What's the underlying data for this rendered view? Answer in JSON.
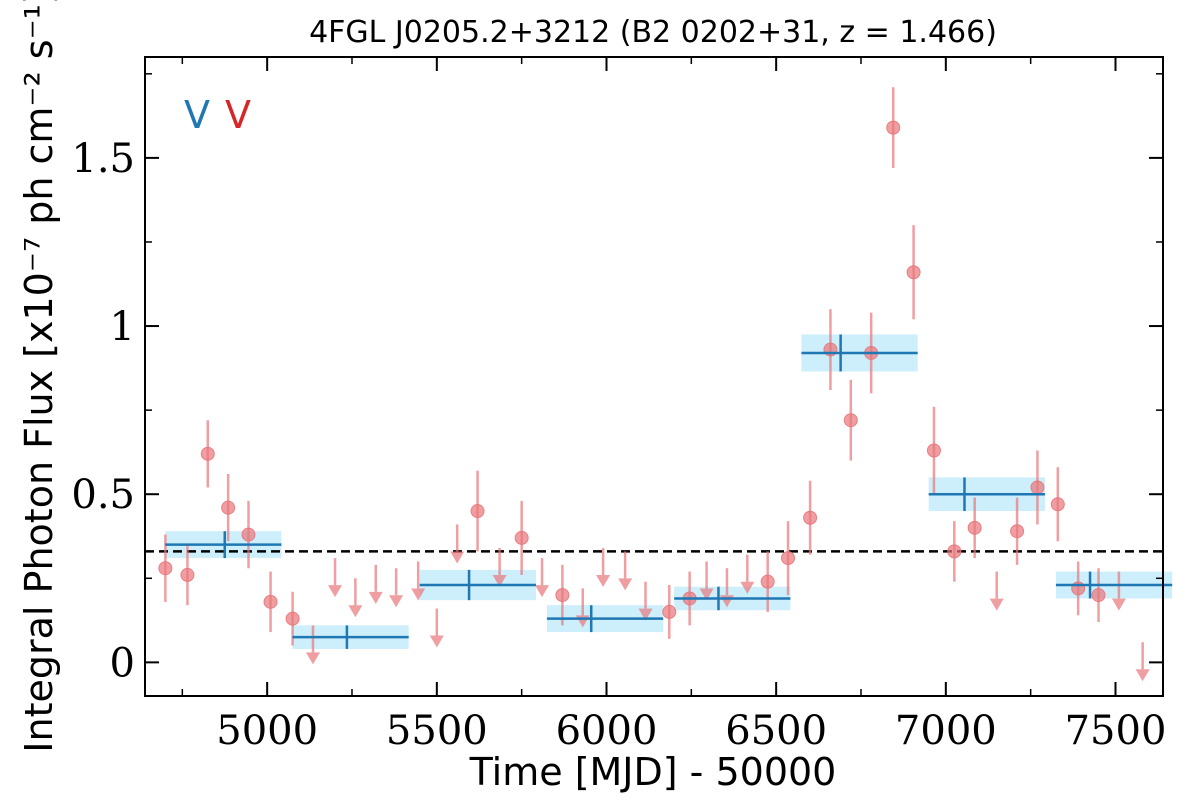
{
  "chart_data": {
    "type": "scatter",
    "title": "4FGL J0205.2+3212 (B2 0202+31, z = 1.466)",
    "xlabel": "Time [MJD] - 50000",
    "ylabel": "Integral Photon Flux [x10⁻⁷ ph cm⁻² s⁻¹]",
    "xlim": [
      4640,
      7640
    ],
    "ylim": [
      -0.1,
      1.8
    ],
    "xticks": [
      5000,
      5500,
      6000,
      6500,
      7000,
      7500
    ],
    "xtick_labels": [
      "5000",
      "5500",
      "6000",
      "6500",
      "7000",
      "7500"
    ],
    "yticks": [
      0,
      0.5,
      1,
      1.5
    ],
    "ytick_labels": [
      "0",
      "0.5",
      "1",
      "1.5"
    ],
    "grid": false,
    "mean_line": 0.33,
    "corner_markers": [
      {
        "text": "V",
        "color": "#1f77b4"
      },
      {
        "text": "V",
        "color": "#d62728"
      }
    ],
    "series": [
      {
        "color": "#e8767a",
        "kind": "detections",
        "points": [
          {
            "x": 4700,
            "y": 0.28,
            "err": 0.1
          },
          {
            "x": 4765,
            "y": 0.26,
            "err": 0.09
          },
          {
            "x": 4825,
            "y": 0.62,
            "err": 0.1
          },
          {
            "x": 4885,
            "y": 0.46,
            "err": 0.1
          },
          {
            "x": 4945,
            "y": 0.38,
            "err": 0.1
          },
          {
            "x": 5010,
            "y": 0.18,
            "err": 0.09
          },
          {
            "x": 5075,
            "y": 0.13,
            "err": 0.08
          },
          {
            "x": 5620,
            "y": 0.45,
            "err": 0.12
          },
          {
            "x": 5750,
            "y": 0.37,
            "err": 0.11
          },
          {
            "x": 5870,
            "y": 0.2,
            "err": 0.09
          },
          {
            "x": 6185,
            "y": 0.15,
            "err": 0.08
          },
          {
            "x": 6245,
            "y": 0.19,
            "err": 0.08
          },
          {
            "x": 6475,
            "y": 0.24,
            "err": 0.09
          },
          {
            "x": 6535,
            "y": 0.31,
            "err": 0.11
          },
          {
            "x": 6600,
            "y": 0.43,
            "err": 0.11
          },
          {
            "x": 6660,
            "y": 0.93,
            "err": 0.12
          },
          {
            "x": 6720,
            "y": 0.72,
            "err": 0.12
          },
          {
            "x": 6780,
            "y": 0.92,
            "err": 0.12
          },
          {
            "x": 6845,
            "y": 1.59,
            "err": 0.12
          },
          {
            "x": 6905,
            "y": 1.16,
            "err": 0.14
          },
          {
            "x": 6965,
            "y": 0.63,
            "err": 0.13
          },
          {
            "x": 7025,
            "y": 0.33,
            "err": 0.09
          },
          {
            "x": 7085,
            "y": 0.4,
            "err": 0.09
          },
          {
            "x": 7210,
            "y": 0.39,
            "err": 0.1
          },
          {
            "x": 7270,
            "y": 0.52,
            "err": 0.11
          },
          {
            "x": 7330,
            "y": 0.47,
            "err": 0.11
          },
          {
            "x": 7390,
            "y": 0.22,
            "err": 0.08
          },
          {
            "x": 7450,
            "y": 0.2,
            "err": 0.08
          }
        ]
      },
      {
        "color": "#e8767a",
        "kind": "upper_limits",
        "points": [
          {
            "x": 5135,
            "y": 0.11
          },
          {
            "x": 5200,
            "y": 0.31
          },
          {
            "x": 5260,
            "y": 0.25
          },
          {
            "x": 5320,
            "y": 0.29
          },
          {
            "x": 5380,
            "y": 0.28
          },
          {
            "x": 5445,
            "y": 0.3
          },
          {
            "x": 5500,
            "y": 0.16
          },
          {
            "x": 5560,
            "y": 0.41
          },
          {
            "x": 5685,
            "y": 0.34
          },
          {
            "x": 5810,
            "y": 0.31
          },
          {
            "x": 5930,
            "y": 0.22
          },
          {
            "x": 5990,
            "y": 0.34
          },
          {
            "x": 6055,
            "y": 0.33
          },
          {
            "x": 6115,
            "y": 0.24
          },
          {
            "x": 6295,
            "y": 0.3
          },
          {
            "x": 6355,
            "y": 0.28
          },
          {
            "x": 6415,
            "y": 0.32
          },
          {
            "x": 7150,
            "y": 0.27
          },
          {
            "x": 7510,
            "y": 0.27
          },
          {
            "x": 7580,
            "y": 0.06
          }
        ]
      },
      {
        "color": "#1f77b4",
        "band_color": "#cdeefb",
        "kind": "bins",
        "points": [
          {
            "x_start": 4670,
            "x_end": 5045,
            "y": 0.35,
            "err": 0.04,
            "x_center": 4875
          },
          {
            "x_start": 5045,
            "x_end": 5420,
            "y": 0.075,
            "err": 0.035,
            "x_center": 5235
          },
          {
            "x_start": 5420,
            "x_end": 5795,
            "y": 0.23,
            "err": 0.045,
            "x_center": 5595
          },
          {
            "x_start": 5795,
            "x_end": 6170,
            "y": 0.13,
            "err": 0.04,
            "x_center": 5955
          },
          {
            "x_start": 6170,
            "x_end": 6545,
            "y": 0.19,
            "err": 0.035,
            "x_center": 6330
          },
          {
            "x_start": 6545,
            "x_end": 6920,
            "y": 0.92,
            "err": 0.055,
            "x_center": 6690
          },
          {
            "x_start": 6920,
            "x_end": 7295,
            "y": 0.5,
            "err": 0.05,
            "x_center": 7055
          },
          {
            "x_start": 7295,
            "x_end": 7670,
            "y": 0.23,
            "err": 0.04,
            "x_center": 7425
          }
        ]
      }
    ]
  }
}
